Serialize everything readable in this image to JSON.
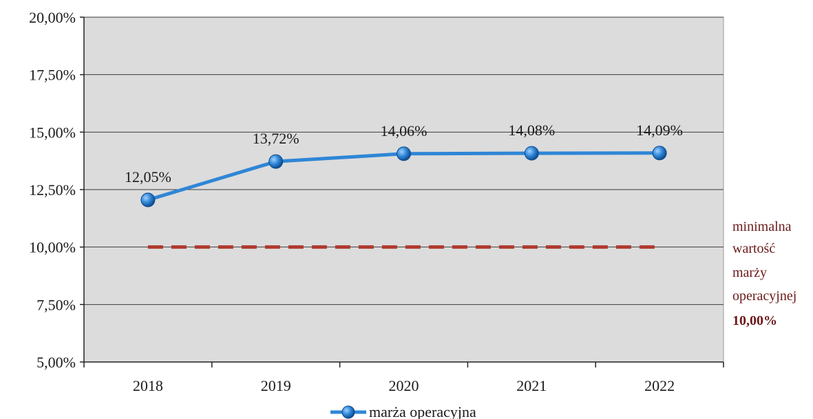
{
  "chart_data": {
    "type": "line",
    "categories": [
      "2018",
      "2019",
      "2020",
      "2021",
      "2022"
    ],
    "series": [
      {
        "name": "marża operacyjna",
        "values": [
          12.05,
          13.72,
          14.06,
          14.08,
          14.09
        ],
        "labels": [
          "12,05%",
          "13,72%",
          "14,06%",
          "14,08%",
          "14,09%"
        ],
        "color": "#2f86d6",
        "marker_color": "#1f6fc0"
      }
    ],
    "threshold": {
      "value": 10.0,
      "color": "#b03a2e",
      "style": "dashed",
      "annotation_lines": [
        "minimalna",
        "wartość",
        "marży",
        "operacyjnej"
      ],
      "annotation_value": "10,00%"
    },
    "y_ticks": [
      20,
      17.5,
      15,
      12.5,
      10,
      7.5,
      5
    ],
    "y_tick_labels": [
      "20,00%",
      "17,50%",
      "15,00%",
      "12,50%",
      "10,00%",
      "7,50%",
      "5,00%"
    ],
    "ylim": [
      5,
      20
    ],
    "grid": true,
    "legend_position": "bottom",
    "plot_background": "#dcdcdc",
    "title": "",
    "xlabel": "",
    "ylabel": ""
  }
}
